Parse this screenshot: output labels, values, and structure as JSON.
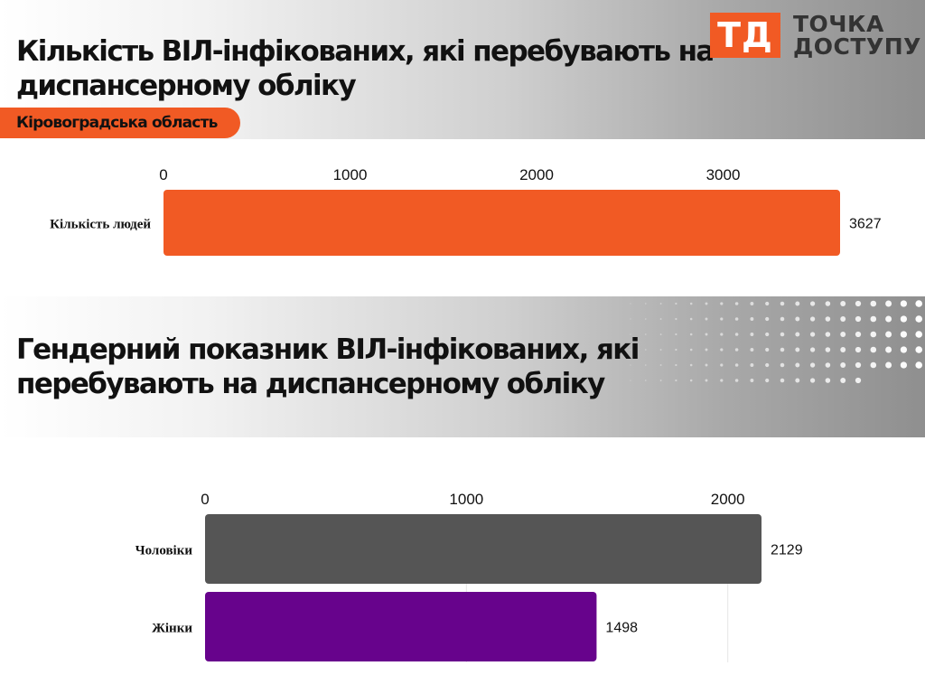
{
  "header": {
    "title": "Кількість ВІЛ-інфікованих, які перебувають на диспансерному обліку",
    "region": "Кіровоградська область"
  },
  "logo": {
    "mark": "ТД",
    "line1": "ТОЧКА",
    "line2": "ДОСТУПУ"
  },
  "section2": {
    "title": "Гендерний показник ВІЛ-інфікованих, які перебувають на диспансерному обліку"
  },
  "colors": {
    "accent": "#f15a24",
    "men": "#555555",
    "women": "#67038c"
  },
  "chart_data": [
    {
      "type": "bar",
      "orientation": "horizontal",
      "categories": [
        "Кількість людей"
      ],
      "values": [
        3627
      ],
      "xticks": [
        0,
        1000,
        2000,
        3000
      ],
      "xlim": [
        0,
        3627
      ],
      "colors": [
        "#f15a24"
      ],
      "data_labels": true
    },
    {
      "type": "bar",
      "orientation": "horizontal",
      "categories": [
        "Чоловіки",
        "Жінки"
      ],
      "values": [
        2129,
        1498
      ],
      "xticks": [
        0,
        1000,
        2000
      ],
      "xlim": [
        0,
        2129
      ],
      "colors": [
        "#555555",
        "#67038c"
      ],
      "data_labels": true,
      "grid": true
    }
  ]
}
